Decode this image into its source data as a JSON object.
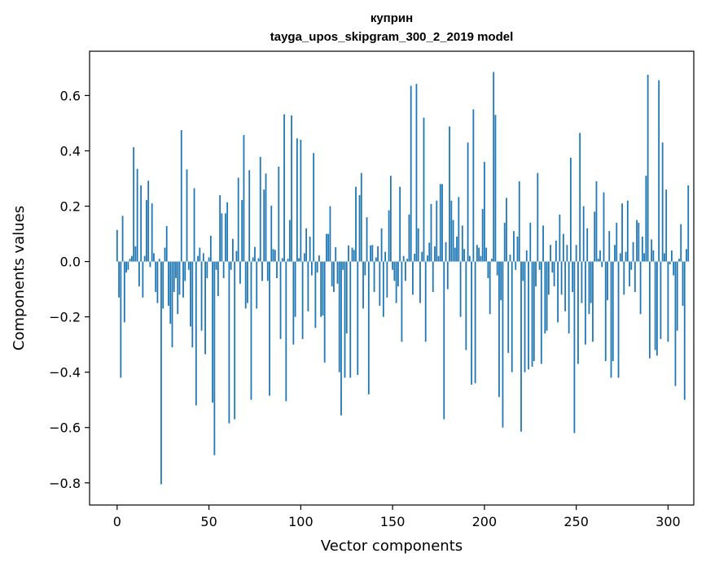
{
  "chart_data": {
    "type": "bar",
    "title": "куприн",
    "subtitle": "tayga_upos_skipgram_300_2_2019 model",
    "xlabel": "Vector components",
    "ylabel": "Components values",
    "xlim": [
      -15,
      314
    ],
    "ylim": [
      -0.88,
      0.76
    ],
    "xticks": [
      0,
      50,
      100,
      150,
      200,
      250,
      300
    ],
    "xtick_labels": [
      "0",
      "50",
      "100",
      "150",
      "200",
      "250",
      "300"
    ],
    "yticks": [
      -0.8,
      -0.6,
      -0.4,
      -0.2,
      0.0,
      0.2,
      0.4,
      0.6
    ],
    "ytick_labels": [
      "−0.8",
      "−0.6",
      "−0.4",
      "−0.2",
      "0.0",
      "0.2",
      "0.4",
      "0.6"
    ],
    "grid": false,
    "bar_color": "#1f77b4",
    "values": [
      0.114,
      -0.13,
      -0.42,
      0.165,
      -0.22,
      -0.04,
      -0.03,
      0.01,
      0.02,
      0.413,
      0.055,
      0.335,
      -0.09,
      0.275,
      -0.13,
      0.02,
      0.222,
      0.292,
      -0.02,
      0.21,
      0.03,
      -0.11,
      -0.15,
      0.01,
      -0.805,
      -0.17,
      0.05,
      0.128,
      -0.16,
      -0.225,
      -0.31,
      -0.11,
      -0.06,
      -0.19,
      -0.12,
      0.475,
      -0.13,
      -0.07,
      0.333,
      -0.03,
      -0.235,
      -0.31,
      0.265,
      -0.52,
      0.02,
      0.05,
      -0.25,
      0.03,
      -0.335,
      -0.06,
      0.015,
      0.093,
      -0.51,
      -0.7,
      -0.03,
      -0.125,
      0.24,
      0.174,
      -0.06,
      0.174,
      0.214,
      -0.585,
      -0.03,
      0.082,
      -0.57,
      0.038,
      0.303,
      -0.08,
      0.222,
      0.457,
      -0.17,
      -0.15,
      0.33,
      -0.5,
      0.015,
      0.053,
      -0.17,
      0.012,
      0.378,
      -0.07,
      0.26,
      0.318,
      -0.07,
      -0.485,
      0.202,
      0.045,
      0.042,
      -0.06,
      0.343,
      -0.28,
      0.012,
      0.532,
      -0.505,
      0.01,
      0.15,
      0.528,
      -0.3,
      -0.2,
      0.445,
      0.012,
      0.44,
      -0.28,
      0.03,
      0.12,
      -0.18,
      0.09,
      -0.05,
      0.392,
      -0.24,
      -0.04,
      0.022,
      -0.2,
      -0.195,
      -0.365,
      0.1,
      0.1,
      0.2,
      -0.09,
      -0.11,
      0.052,
      -0.08,
      -0.4,
      -0.556,
      -0.03,
      -0.42,
      -0.26,
      0.058,
      -0.42,
      0.05,
      0.042,
      0.27,
      -0.41,
      0.24,
      0.32,
      -0.17,
      -0.05,
      0.16,
      -0.48,
      0.058,
      0.06,
      -0.11,
      0.015,
      0.055,
      -0.16,
      0.12,
      -0.2,
      0.035,
      -0.13,
      0.185,
      0.31,
      -0.03,
      -0.07,
      -0.15,
      -0.09,
      0.27,
      -0.29,
      0.02,
      -0.07,
      0.01,
      0.17,
      0.635,
      -0.12,
      0.028,
      0.642,
      0.12,
      -0.15,
      0.035,
      0.52,
      -0.29,
      0.022,
      0.068,
      0.208,
      -0.11,
      0.055,
      0.22,
      0.02,
      0.28,
      0.28,
      -0.57,
      0.07,
      -0.1,
      0.488,
      0.22,
      0.15,
      0.05,
      0.09,
      0.233,
      -0.2,
      0.13,
      0.045,
      -0.32,
      0.43,
      0.02,
      -0.445,
      0.55,
      -0.44,
      0.06,
      0.05,
      0.02,
      0.19,
      0.36,
      0.05,
      -0.06,
      -0.19,
      0.01,
      0.685,
      0.53,
      -0.05,
      -0.49,
      -0.14,
      -0.6,
      0.14,
      0.23,
      -0.33,
      0.025,
      -0.4,
      0.11,
      -0.03,
      0.09,
      0.29,
      -0.615,
      -0.07,
      -0.4,
      0.04,
      -0.39,
      0.14,
      -0.38,
      -0.36,
      -0.09,
      0.32,
      -0.03,
      -0.37,
      0.13,
      -0.26,
      -0.25,
      -0.12,
      0.06,
      -0.04,
      -0.09,
      0.076,
      -0.22,
      0.17,
      -0.12,
      0.1,
      -0.18,
      0.06,
      -0.26,
      0.375,
      -0.11,
      -0.62,
      0.06,
      -0.37,
      0.465,
      -0.15,
      0.2,
      -0.3,
      0.12,
      -0.19,
      -0.15,
      -0.29,
      0.18,
      0.29,
      0.01,
      0.04,
      -0.02,
      0.25,
      -0.36,
      -0.14,
      0.11,
      -0.42,
      -0.36,
      0.06,
      0.14,
      -0.42,
      0.03,
      0.21,
      -0.12,
      0.035,
      0.22,
      -0.09,
      -0.03,
      0.07,
      -0.11,
      0.15,
      0.14,
      -0.19,
      0.09,
      0.03,
      0.31,
      0.675,
      -0.35,
      0.08,
      0.04,
      -0.32,
      -0.34,
      0.655,
      -0.28,
      0.43,
      0.03,
      0.26,
      -0.29,
      -0.01,
      0.04,
      -0.05,
      -0.45,
      -0.25,
      0.01,
      0.135,
      -0.16,
      -0.5,
      0.045,
      0.275
    ]
  }
}
